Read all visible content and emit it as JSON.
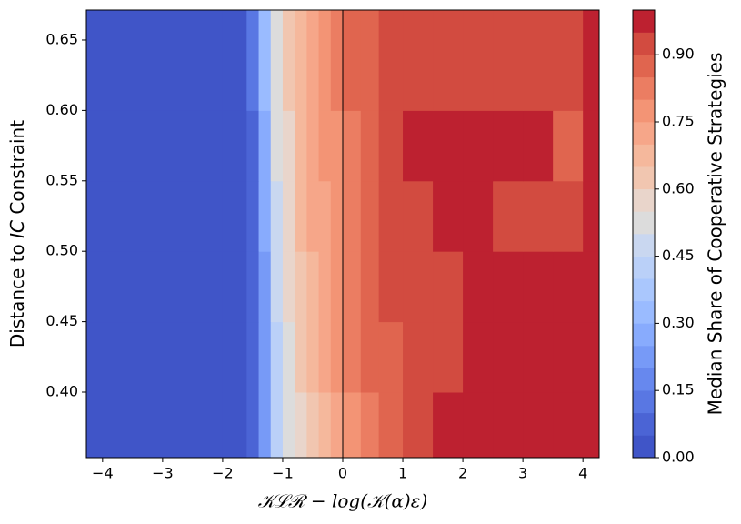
{
  "chart_data": {
    "type": "contourf",
    "xlabel": "𝒦ℒℛ − log(𝒦(α)ε)",
    "ylabel": [
      "Distance to ",
      "IC",
      " Constraint"
    ],
    "colorbar_label": "Median Share of Cooperative Strategies",
    "x": [
      -4.27,
      -2,
      -1.6,
      -1.4,
      -1.2,
      -1.0,
      -0.8,
      -0.6,
      -0.4,
      -0.2,
      0,
      0.3,
      0.6,
      1.0,
      1.5,
      2,
      2.5,
      3,
      3.5,
      4,
      4.27
    ],
    "y": [
      0.3535,
      0.4,
      0.45,
      0.5,
      0.55,
      0.6,
      0.6713
    ],
    "z": [
      [
        0.02,
        0.02,
        0.05,
        0.2,
        0.4,
        0.5,
        0.58,
        0.63,
        0.68,
        0.72,
        0.77,
        0.82,
        0.87,
        0.92,
        0.97,
        0.97,
        0.97,
        0.97,
        0.97,
        0.97
      ],
      [
        0.02,
        0.02,
        0.05,
        0.2,
        0.42,
        0.52,
        0.6,
        0.65,
        0.7,
        0.75,
        0.8,
        0.85,
        0.87,
        0.92,
        0.92,
        0.97,
        0.97,
        0.97,
        0.97,
        0.97
      ],
      [
        0.02,
        0.02,
        0.05,
        0.22,
        0.45,
        0.55,
        0.62,
        0.67,
        0.72,
        0.77,
        0.82,
        0.87,
        0.92,
        0.92,
        0.92,
        0.97,
        0.97,
        0.97,
        0.97,
        0.97
      ],
      [
        0.02,
        0.02,
        0.07,
        0.25,
        0.48,
        0.57,
        0.65,
        0.7,
        0.72,
        0.77,
        0.82,
        0.87,
        0.92,
        0.92,
        0.97,
        0.97,
        0.92,
        0.92,
        0.92,
        0.97
      ],
      [
        0.02,
        0.02,
        0.07,
        0.27,
        0.5,
        0.58,
        0.67,
        0.72,
        0.75,
        0.78,
        0.82,
        0.87,
        0.92,
        0.97,
        0.97,
        0.97,
        0.97,
        0.97,
        0.87,
        0.97
      ],
      [
        0.02,
        0.02,
        0.1,
        0.3,
        0.52,
        0.6,
        0.68,
        0.73,
        0.76,
        0.8,
        0.85,
        0.87,
        0.92,
        0.92,
        0.92,
        0.92,
        0.92,
        0.92,
        0.92,
        0.97
      ]
    ],
    "levels": [
      0,
      0.05,
      0.1,
      0.15,
      0.2,
      0.25,
      0.3,
      0.35,
      0.4,
      0.45,
      0.5,
      0.55,
      0.6,
      0.65,
      0.7,
      0.75,
      0.8,
      0.85,
      0.9,
      0.95,
      1.0
    ],
    "colors": [
      "#4055c8",
      "#4b64d5",
      "#5977e3",
      "#6788ee",
      "#779af7",
      "#88abfd",
      "#9abbff",
      "#aac7fd",
      "#bad0f8",
      "#c9d7f0",
      "#dcdcdc",
      "#e9d5cb",
      "#f1c6b0",
      "#f5b89c",
      "#f6a689",
      "#f39475",
      "#eb7d62",
      "#e0654f",
      "#d24b40",
      "#bd2130"
    ],
    "xlim": [
      -4.27,
      4.27
    ],
    "ylim": [
      0.3535,
      0.6713
    ],
    "clim": [
      0,
      1.0
    ],
    "xticks": [
      {
        "value": -4,
        "label": "−4"
      },
      {
        "value": -3,
        "label": "−3"
      },
      {
        "value": -2,
        "label": "−2"
      },
      {
        "value": -1,
        "label": "−1"
      },
      0,
      1,
      2,
      3,
      4
    ],
    "yticks": [
      {
        "value": 0.4,
        "label": "0.40"
      },
      {
        "value": 0.45,
        "label": "0.45"
      },
      {
        "value": 0.5,
        "label": "0.50"
      },
      {
        "value": 0.55,
        "label": "0.55"
      },
      {
        "value": 0.6,
        "label": "0.60"
      },
      {
        "value": 0.65,
        "label": "0.65"
      }
    ],
    "cticks": [
      {
        "value": 0,
        "label": "0.00"
      },
      {
        "value": 0.15,
        "label": "0.15"
      },
      {
        "value": 0.3,
        "label": "0.30"
      },
      {
        "value": 0.45,
        "label": "0.45"
      },
      {
        "value": 0.6,
        "label": "0.60"
      },
      {
        "value": 0.75,
        "label": "0.75"
      },
      {
        "value": 0.9,
        "label": "0.90"
      }
    ],
    "vline": 0
  }
}
